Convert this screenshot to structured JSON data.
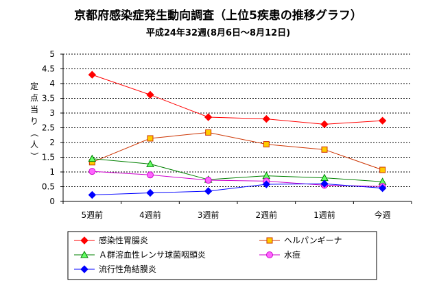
{
  "chart_data": {
    "type": "line",
    "title": "京都府感染症発生動向調査（上位5疾患の推移グラフ）",
    "subtitle": "平成24年32週(8月6日～8月12日)",
    "ylabel": "定点当り（人）",
    "xlabel": "",
    "categories": [
      "5週前",
      "4週前",
      "3週前",
      "2週前",
      "1週前",
      "今週"
    ],
    "ylim": [
      0,
      5
    ],
    "yticks": [
      "0",
      "0.5",
      "1",
      "1.5",
      "2",
      "2.5",
      "3",
      "3.5",
      "4",
      "4.5",
      "5"
    ],
    "grid": "dashed horizontal",
    "legend_position": "bottom",
    "series": [
      {
        "name": "感染性胃腸炎",
        "color": "#ff0000",
        "marker": "diamond",
        "values": [
          4.3,
          3.62,
          2.86,
          2.8,
          2.62,
          2.74
        ]
      },
      {
        "name": "ヘルパンギーナ",
        "color": "#cc3300",
        "marker": "square",
        "values": [
          1.33,
          2.14,
          2.34,
          1.94,
          1.76,
          1.07
        ]
      },
      {
        "name": "Ａ群溶血性レンサ球菌咽頭炎",
        "color": "#008000",
        "marker": "triangle",
        "values": [
          1.45,
          1.27,
          0.74,
          0.87,
          0.8,
          0.67
        ]
      },
      {
        "name": "水痘",
        "color": "#cc00cc",
        "marker": "circle",
        "values": [
          1.02,
          0.9,
          0.72,
          0.69,
          0.55,
          0.51
        ]
      },
      {
        "name": "流行性角結膜炎",
        "color": "#0000ff",
        "marker": "diamond",
        "values": [
          0.22,
          0.29,
          0.35,
          0.58,
          0.6,
          0.45
        ]
      }
    ]
  }
}
